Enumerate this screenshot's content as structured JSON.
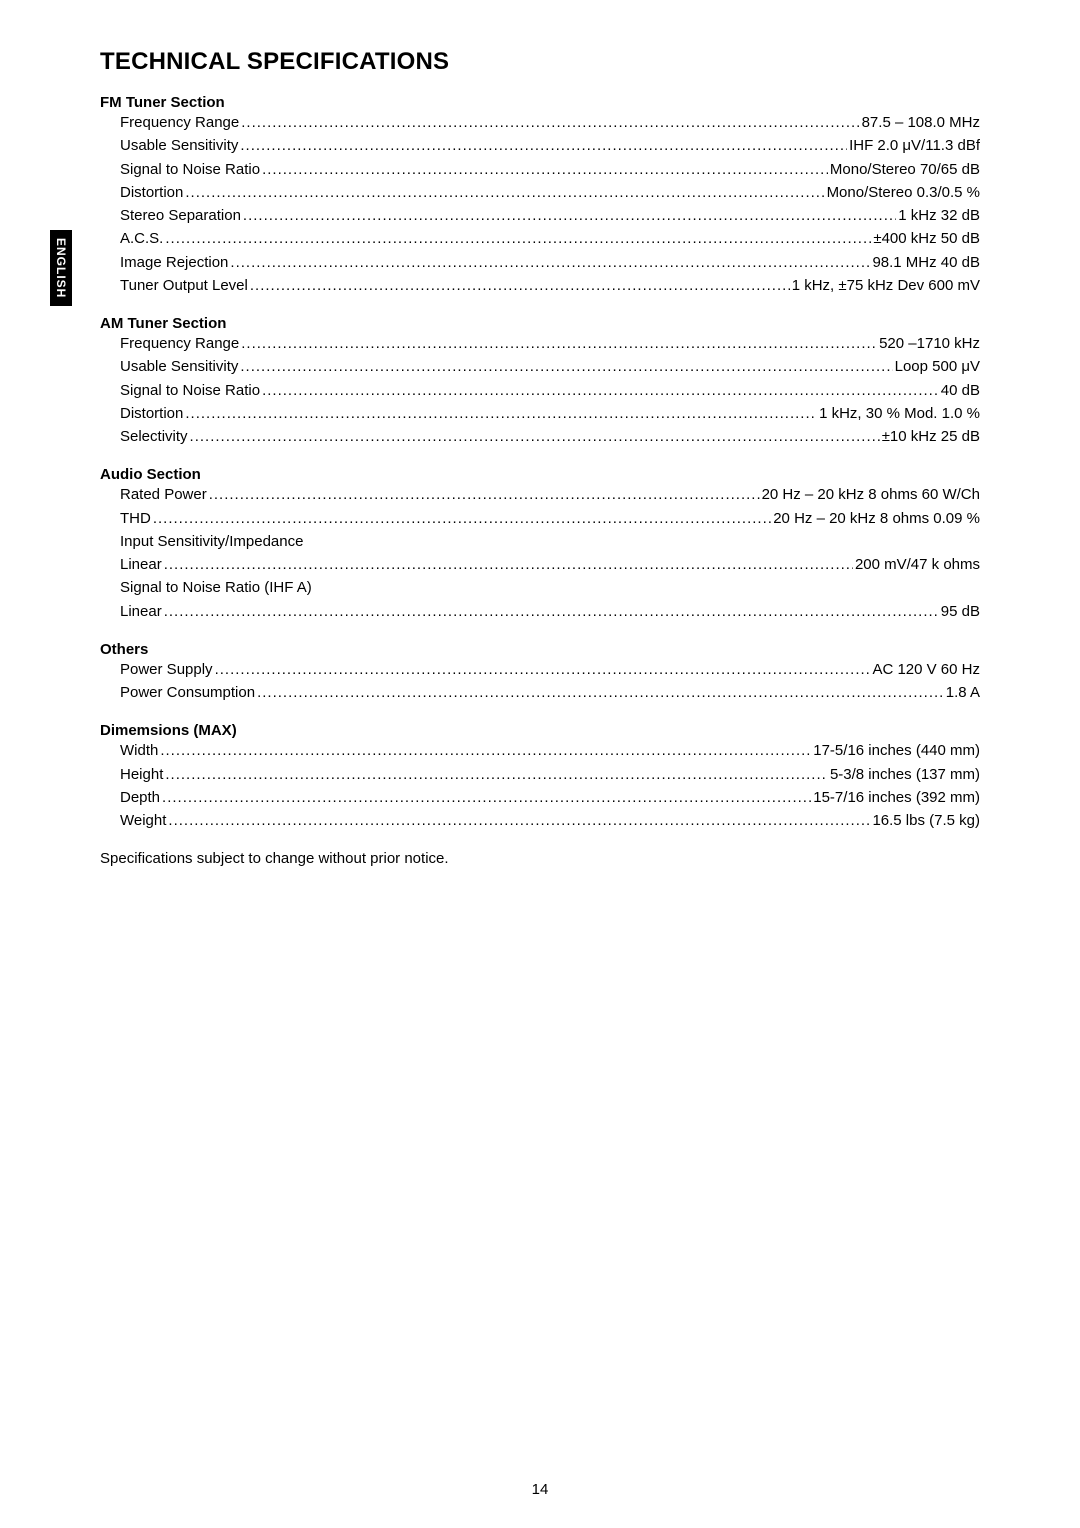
{
  "side_tab": "ENGLISH",
  "title": "TECHNICAL SPECIFICATIONS",
  "sections": [
    {
      "heading": "FM Tuner Section",
      "items": [
        {
          "label": "Frequency Range",
          "value": " 87.5 – 108.0 MHz"
        },
        {
          "label": "Usable Sensitivity",
          "value": " IHF 2.0 μV/11.3 dBf"
        },
        {
          "label": "Signal to Noise Ratio",
          "value": " Mono/Stereo 70/65 dB"
        },
        {
          "label": "Distortion",
          "value": " Mono/Stereo 0.3/0.5 %"
        },
        {
          "label": "Stereo Separation",
          "value": " 1 kHz 32 dB"
        },
        {
          "label": "A.C.S.",
          "value": " ±400 kHz 50 dB"
        },
        {
          "label": "Image Rejection",
          "value": " 98.1 MHz 40 dB"
        },
        {
          "label": "Tuner Output Level",
          "value": " 1 kHz, ±75 kHz Dev 600 mV"
        }
      ]
    },
    {
      "heading": "AM Tuner Section",
      "items": [
        {
          "label": "Frequency Range",
          "value": "520 –1710 kHz"
        },
        {
          "label": "Usable Sensitivity",
          "value": " Loop 500 μV"
        },
        {
          "label": "Signal to Noise Ratio",
          "value": " 40 dB"
        },
        {
          "label": "Distortion",
          "value": " 1 kHz, 30 %  Mod. 1.0 %"
        },
        {
          "label": "Selectivity",
          "value": " ±10 kHz 25 dB"
        }
      ]
    },
    {
      "heading": "Audio Section",
      "items": [
        {
          "label": "Rated Power",
          "value": " 20 Hz – 20 kHz 8 ohms 60 W/Ch"
        },
        {
          "label": "THD",
          "value": " 20 Hz – 20 kHz 8 ohms 0.09 %"
        },
        {
          "label": "Input Sensitivity/Impedance",
          "value": "",
          "no_dots": true
        },
        {
          "label": "Linear",
          "value": "200 mV/47 k ohms"
        },
        {
          "label": "Signal to Noise Ratio (IHF A)",
          "value": "",
          "no_dots": true
        },
        {
          "label": "Linear",
          "value": " 95 dB"
        }
      ]
    },
    {
      "heading": "Others",
      "items": [
        {
          "label": "Power Supply",
          "value": " AC 120 V 60 Hz"
        },
        {
          "label": "Power Consumption",
          "value": " 1.8 A"
        }
      ]
    },
    {
      "heading": "Dimemsions (MAX)",
      "items": [
        {
          "label": "Width",
          "value": " 17-5/16 inches (440 mm)"
        },
        {
          "label": "Height",
          "value": " 5-3/8 inches (137 mm)"
        },
        {
          "label": "Depth",
          "value": " 15-7/16 inches (392 mm)"
        },
        {
          "label": "Weight",
          "value": " 16.5 lbs (7.5 kg)"
        }
      ]
    }
  ],
  "footer_note": "Specifications subject to change without prior notice.",
  "page_number": "14",
  "colors": {
    "text": "#000000",
    "background": "#ffffff",
    "tab_bg": "#000000",
    "tab_text": "#ffffff"
  }
}
